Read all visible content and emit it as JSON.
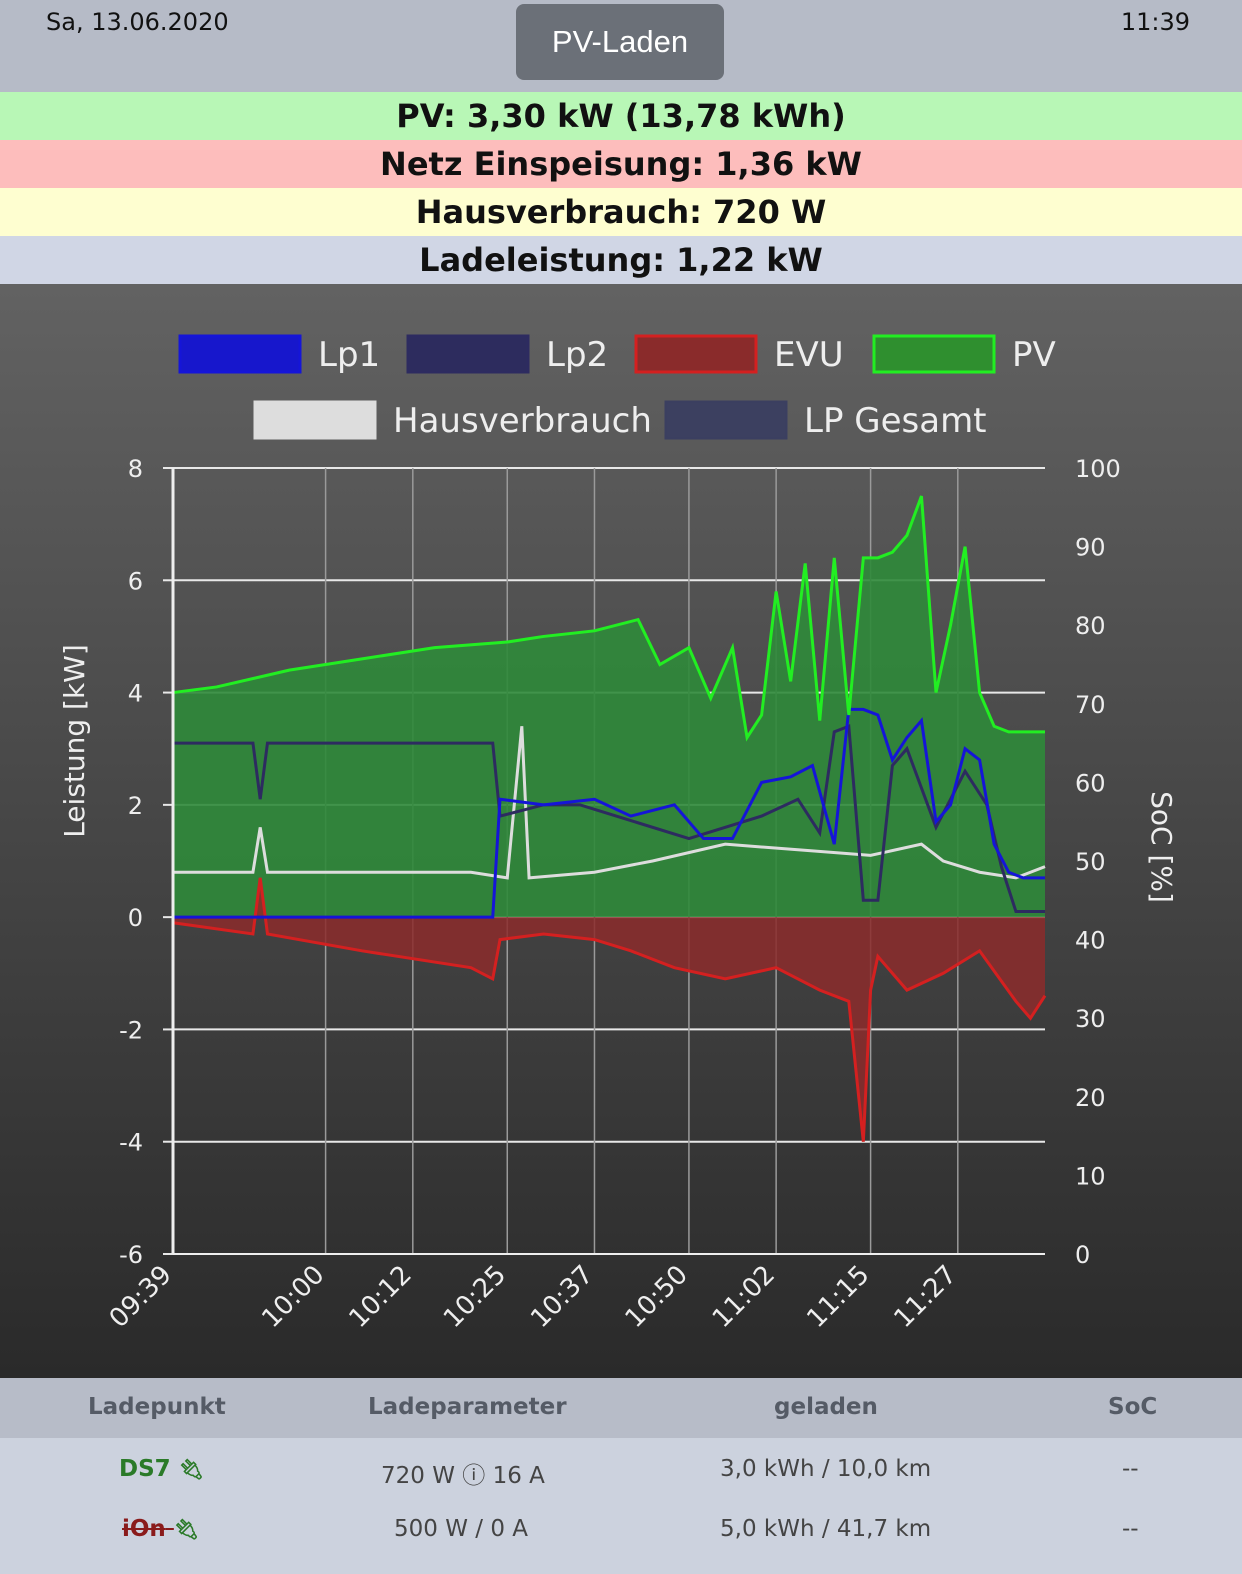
{
  "header": {
    "date": "Sa, 13.06.2020",
    "time": "11:39",
    "mode_button": "PV-Laden"
  },
  "status_rows": [
    {
      "text": "PV: 3,30 kW (13,78 kWh)",
      "color": "#b8f7b6"
    },
    {
      "text": "Netz Einspeisung: 1,36 kW",
      "color": "#fdbdbc"
    },
    {
      "text": "Hausverbrauch: 720 W",
      "color": "#fefed0"
    },
    {
      "text": "Ladeleistung: 1,22 kW",
      "color": "#d0d6e5"
    }
  ],
  "chart_data": {
    "type": "line",
    "legend": [
      "Lp1",
      "Lp2",
      "EVU",
      "PV",
      "Hausverbrauch",
      "LP Gesamt"
    ],
    "colors": {
      "Lp1": "#1515d8",
      "Lp2": "#2d2b60",
      "EVU": "#d42020",
      "PV": "#22ee22",
      "Hausverbrauch": "#dddddd",
      "LP Gesamt": "#3b3f60"
    },
    "ylabel": "Leistung [kW]",
    "y2label": "SoC [%]",
    "ylim": [
      -6,
      8
    ],
    "y2lim": [
      0,
      100
    ],
    "yticks": [
      "8",
      "6",
      "4",
      "2",
      "0",
      "-2",
      "-4",
      "-6"
    ],
    "y2ticks": [
      "100",
      "90",
      "80",
      "70",
      "60",
      "50",
      "40",
      "30",
      "20",
      "10",
      "0"
    ],
    "xticks": [
      "09:39",
      "10:00",
      "10:12",
      "10:25",
      "10:37",
      "10:50",
      "11:02",
      "11:15",
      "11:27"
    ],
    "series": [
      {
        "name": "PV",
        "x": [
          "09:39",
          "09:45",
          "09:55",
          "10:05",
          "10:15",
          "10:25",
          "10:30",
          "10:37",
          "10:43",
          "10:46",
          "10:50",
          "10:53",
          "10:56",
          "10:58",
          "11:00",
          "11:02",
          "11:04",
          "11:06",
          "11:08",
          "11:10",
          "11:12",
          "11:14",
          "11:16",
          "11:18",
          "11:20",
          "11:22",
          "11:24",
          "11:26",
          "11:28",
          "11:30",
          "11:32",
          "11:34",
          "11:36",
          "11:39"
        ],
        "values": [
          4.0,
          4.1,
          4.4,
          4.6,
          4.8,
          4.9,
          5.0,
          5.1,
          5.3,
          4.5,
          4.8,
          3.9,
          4.8,
          3.2,
          3.6,
          5.8,
          4.2,
          6.3,
          3.5,
          6.4,
          3.6,
          6.4,
          6.4,
          6.5,
          6.8,
          7.5,
          4.0,
          5.2,
          6.6,
          4.0,
          3.4,
          3.3,
          3.3,
          3.3
        ]
      },
      {
        "name": "Lp1",
        "x": [
          "09:39",
          "10:23",
          "10:24",
          "10:30",
          "10:37",
          "10:42",
          "10:48",
          "10:52",
          "10:56",
          "11:00",
          "11:04",
          "11:07",
          "11:10",
          "11:12",
          "11:14",
          "11:16",
          "11:18",
          "11:20",
          "11:22",
          "11:24",
          "11:26",
          "11:28",
          "11:30",
          "11:32",
          "11:34",
          "11:36",
          "11:39"
        ],
        "values": [
          0,
          0,
          2.1,
          2.0,
          2.1,
          1.8,
          2.0,
          1.4,
          1.4,
          2.4,
          2.5,
          2.7,
          1.3,
          3.7,
          3.7,
          3.6,
          2.8,
          3.2,
          3.5,
          1.7,
          2.0,
          3.0,
          2.8,
          1.3,
          0.8,
          0.7,
          0.7
        ]
      },
      {
        "name": "Lp2",
        "x": [
          "09:39",
          "09:50",
          "09:51",
          "09:52",
          "10:23",
          "10:24",
          "10:30",
          "10:35",
          "10:40",
          "10:50",
          "11:00",
          "11:05",
          "11:08",
          "11:10",
          "11:12",
          "11:14",
          "11:16",
          "11:18",
          "11:20",
          "11:24",
          "11:28",
          "11:31",
          "11:33",
          "11:35",
          "11:39"
        ],
        "values": [
          3.1,
          3.1,
          2.1,
          3.1,
          3.1,
          1.8,
          2.0,
          2.0,
          1.8,
          1.4,
          1.8,
          2.1,
          1.5,
          3.3,
          3.4,
          0.3,
          0.3,
          2.7,
          3.0,
          1.6,
          2.6,
          2.0,
          0.9,
          0.1,
          0.1
        ]
      },
      {
        "name": "Hausverbrauch",
        "x": [
          "09:39",
          "09:50",
          "09:51",
          "09:52",
          "10:05",
          "10:20",
          "10:25",
          "10:27",
          "10:28",
          "10:37",
          "10:45",
          "10:55",
          "11:05",
          "11:15",
          "11:22",
          "11:25",
          "11:30",
          "11:35",
          "11:39"
        ],
        "values": [
          0.8,
          0.8,
          1.6,
          0.8,
          0.8,
          0.8,
          0.7,
          3.4,
          0.7,
          0.8,
          1.0,
          1.3,
          1.2,
          1.1,
          1.3,
          1.0,
          0.8,
          0.7,
          0.9
        ]
      },
      {
        "name": "EVU",
        "x": [
          "09:39",
          "09:50",
          "09:51",
          "09:52",
          "10:05",
          "10:20",
          "10:23",
          "10:24",
          "10:30",
          "10:37",
          "10:42",
          "10:48",
          "10:55",
          "11:02",
          "11:08",
          "11:12",
          "11:14",
          "11:15",
          "11:16",
          "11:20",
          "11:25",
          "11:30",
          "11:35",
          "11:37",
          "11:39"
        ],
        "values": [
          -0.1,
          -0.3,
          0.7,
          -0.3,
          -0.6,
          -0.9,
          -1.1,
          -0.4,
          -0.3,
          -0.4,
          -0.6,
          -0.9,
          -1.1,
          -0.9,
          -1.3,
          -1.5,
          -4.0,
          -1.3,
          -0.7,
          -1.3,
          -1.0,
          -0.6,
          -1.5,
          -1.8,
          -1.4
        ]
      }
    ]
  },
  "table": {
    "headers": [
      "Ladepunkt",
      "Ladeparameter",
      "geladen",
      "SoC"
    ],
    "rows": [
      {
        "name": "DS7",
        "plug_icon": "plug-icon",
        "params": "720 W ⓘ 16 A",
        "charged": "3,0 kWh / 10,0 km",
        "soc": "--",
        "active": true
      },
      {
        "name": "iOn",
        "plug_icon": "plug-icon",
        "params": "500 W / 0 A",
        "charged": "5,0 kWh / 41,7 km",
        "soc": "--",
        "active": false
      }
    ]
  }
}
